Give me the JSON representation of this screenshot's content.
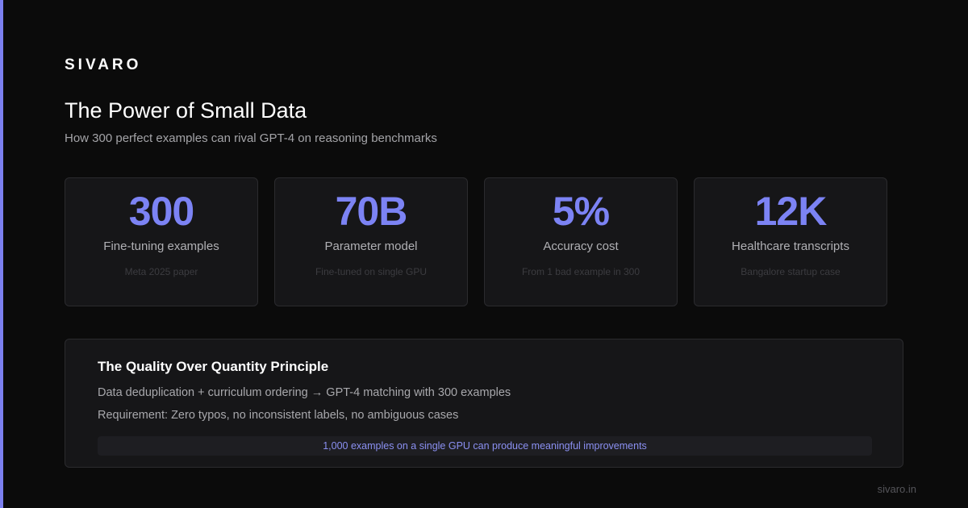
{
  "brand": "SIVARO",
  "header": {
    "title": "The Power of Small Data",
    "subtitle": "How 300 perfect examples can rival GPT-4 on reasoning benchmarks"
  },
  "stats": [
    {
      "value": "300",
      "label": "Fine-tuning examples",
      "note": "Meta 2025 paper"
    },
    {
      "value": "70B",
      "label": "Parameter model",
      "note": "Fine-tuned on single GPU"
    },
    {
      "value": "5%",
      "label": "Accuracy cost",
      "note": "From 1 bad example in 300"
    },
    {
      "value": "12K",
      "label": "Healthcare transcripts",
      "note": "Bangalore startup case"
    }
  ],
  "principle": {
    "heading": "The Quality Over Quantity Principle",
    "lines": [
      "Data deduplication + curriculum ordering → GPT-4 matching with 300 examples",
      "Requirement: Zero typos, no inconsistent labels, no ambiguous cases"
    ],
    "highlight": "1,000 examples on a single GPU can produce meaningful improvements"
  },
  "footer": "sivaro.in"
}
